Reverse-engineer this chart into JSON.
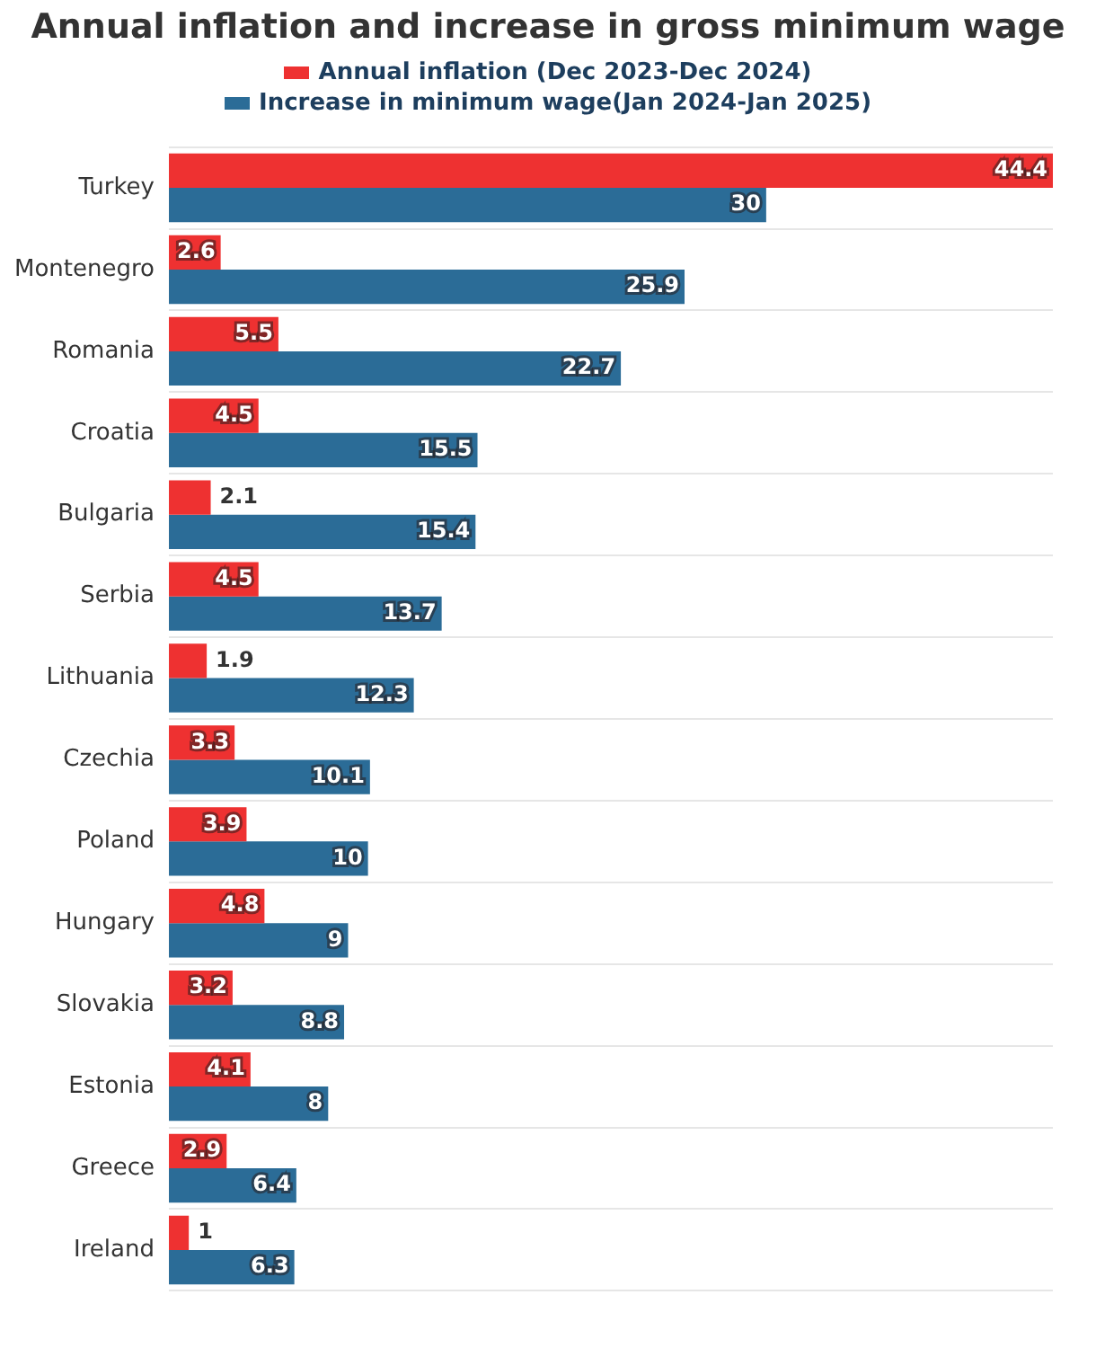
{
  "chart_data": {
    "type": "bar",
    "orientation": "horizontal",
    "title": "Annual inflation and increase in gross minimum wage",
    "categories": [
      "Turkey",
      "Montenegro",
      "Romania",
      "Croatia",
      "Bulgaria",
      "Serbia",
      "Lithuania",
      "Czechia",
      "Poland",
      "Hungary",
      "Slovakia",
      "Estonia",
      "Greece",
      "Ireland"
    ],
    "series": [
      {
        "name": "Annual inflation (Dec 2023-Dec 2024)",
        "color": "#ee3131",
        "values": [
          44.4,
          2.6,
          5.5,
          4.5,
          2.1,
          4.5,
          1.9,
          3.3,
          3.9,
          4.8,
          3.2,
          4.1,
          2.9,
          1
        ]
      },
      {
        "name": "Increase in minimum wage(Jan 2024-Jan 2025)",
        "color": "#2b6c97",
        "values": [
          30,
          25.9,
          22.7,
          15.5,
          15.4,
          13.7,
          12.3,
          10.1,
          10,
          9,
          8.8,
          8,
          6.4,
          6.3
        ]
      }
    ],
    "xlim": [
      0,
      44.4
    ],
    "tick_labels": "y",
    "grid": "y",
    "legend": "top",
    "data_labels": true
  }
}
